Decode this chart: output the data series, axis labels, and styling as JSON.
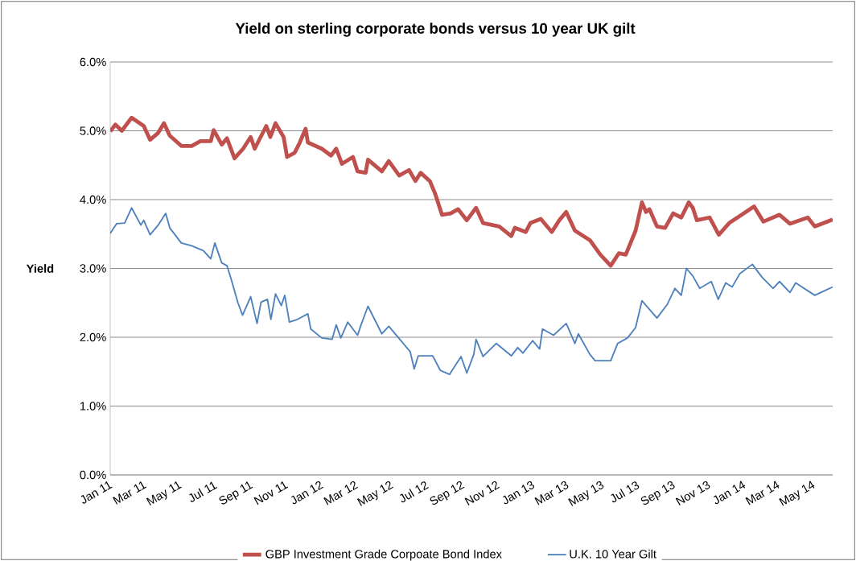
{
  "chart_data": {
    "type": "line",
    "title": "Yield on sterling corporate bonds versus 10 year UK gilt",
    "ylabel": "Yield",
    "ylim": [
      0,
      6
    ],
    "yticks": [
      {
        "value": 0,
        "label": "0.0%"
      },
      {
        "value": 1,
        "label": "1.0%"
      },
      {
        "value": 2,
        "label": "2.0%"
      },
      {
        "value": 3,
        "label": "3.0%"
      },
      {
        "value": 4,
        "label": "4.0%"
      },
      {
        "value": 5,
        "label": "5.0%"
      },
      {
        "value": 6,
        "label": "6.0%"
      }
    ],
    "xlim": [
      "2011-01-01",
      "2014-06-04"
    ],
    "xticks": [
      {
        "value": "2011-01-01",
        "label": "Jan 11"
      },
      {
        "value": "2011-03-01",
        "label": "Mar 11"
      },
      {
        "value": "2011-05-01",
        "label": "May 11"
      },
      {
        "value": "2011-07-01",
        "label": "Jul 11"
      },
      {
        "value": "2011-09-01",
        "label": "Sep 11"
      },
      {
        "value": "2011-11-01",
        "label": "Nov 11"
      },
      {
        "value": "2012-01-01",
        "label": "Jan 12"
      },
      {
        "value": "2012-03-01",
        "label": "Mar 12"
      },
      {
        "value": "2012-05-01",
        "label": "May 12"
      },
      {
        "value": "2012-07-01",
        "label": "Jul 12"
      },
      {
        "value": "2012-09-01",
        "label": "Sep 12"
      },
      {
        "value": "2012-11-01",
        "label": "Nov 12"
      },
      {
        "value": "2013-01-01",
        "label": "Jan 13"
      },
      {
        "value": "2013-03-01",
        "label": "Mar 13"
      },
      {
        "value": "2013-05-01",
        "label": "May 13"
      },
      {
        "value": "2013-07-01",
        "label": "Jul 13"
      },
      {
        "value": "2013-09-01",
        "label": "Sep 13"
      },
      {
        "value": "2013-11-01",
        "label": "Nov 13"
      },
      {
        "value": "2014-01-01",
        "label": "Jan 14"
      },
      {
        "value": "2014-03-01",
        "label": "Mar 14"
      },
      {
        "value": "2014-05-01",
        "label": "May 14"
      }
    ],
    "grid": "y",
    "legend": "bottom",
    "marker": "none",
    "line_style": "solid",
    "series": [
      {
        "name": "GBP Investment Grade Corpoate Bond Index",
        "color": "#c0504d",
        "x": [
          "2011-01-01",
          "2011-01-10",
          "2011-01-21",
          "2011-02-07",
          "2011-02-28",
          "2011-03-11",
          "2011-03-25",
          "2011-04-04",
          "2011-04-14",
          "2011-05-04",
          "2011-05-22",
          "2011-06-06",
          "2011-06-24",
          "2011-06-29",
          "2011-07-13",
          "2011-07-22",
          "2011-08-04",
          "2011-08-19",
          "2011-09-01",
          "2011-09-08",
          "2011-09-28",
          "2011-10-05",
          "2011-10-14",
          "2011-10-28",
          "2011-11-03",
          "2011-11-16",
          "2011-11-25",
          "2011-12-05",
          "2011-12-09",
          "2012-01-02",
          "2012-01-18",
          "2012-01-27",
          "2012-02-06",
          "2012-02-25",
          "2012-03-04",
          "2012-03-18",
          "2012-03-22",
          "2012-04-15",
          "2012-04-27",
          "2012-05-15",
          "2012-06-01",
          "2012-06-12",
          "2012-06-21",
          "2012-07-07",
          "2012-07-16",
          "2012-07-28",
          "2012-08-12",
          "2012-08-25",
          "2012-09-09",
          "2012-09-25",
          "2012-10-07",
          "2012-11-04",
          "2012-11-25",
          "2012-12-01",
          "2012-12-20",
          "2012-12-28",
          "2013-01-15",
          "2013-02-03",
          "2013-02-16",
          "2013-02-28",
          "2013-03-15",
          "2013-04-10",
          "2013-04-28",
          "2013-05-16",
          "2013-05-30",
          "2013-06-11",
          "2013-06-28",
          "2013-07-09",
          "2013-07-16",
          "2013-07-22",
          "2013-08-04",
          "2013-08-18",
          "2013-09-01",
          "2013-09-15",
          "2013-09-28",
          "2013-10-05",
          "2013-10-12",
          "2013-11-03",
          "2013-11-19",
          "2013-12-07",
          "2013-12-25",
          "2014-01-19",
          "2014-02-04",
          "2014-03-04",
          "2014-03-22",
          "2014-04-22",
          "2014-05-04",
          "2014-06-04"
        ],
        "values": [
          4.99,
          5.09,
          5.0,
          5.19,
          5.07,
          4.87,
          4.97,
          5.11,
          4.93,
          4.78,
          4.78,
          4.85,
          4.85,
          5.01,
          4.8,
          4.89,
          4.6,
          4.74,
          4.91,
          4.74,
          5.07,
          4.91,
          5.11,
          4.91,
          4.62,
          4.68,
          4.83,
          5.03,
          4.83,
          4.74,
          4.64,
          4.74,
          4.52,
          4.62,
          4.41,
          4.39,
          4.58,
          4.41,
          4.56,
          4.35,
          4.43,
          4.27,
          4.39,
          4.27,
          4.09,
          3.78,
          3.8,
          3.86,
          3.7,
          3.88,
          3.66,
          3.61,
          3.47,
          3.59,
          3.53,
          3.66,
          3.72,
          3.53,
          3.7,
          3.82,
          3.55,
          3.41,
          3.2,
          3.04,
          3.22,
          3.2,
          3.55,
          3.96,
          3.82,
          3.86,
          3.61,
          3.59,
          3.8,
          3.74,
          3.96,
          3.88,
          3.7,
          3.74,
          3.49,
          3.66,
          3.76,
          3.9,
          3.68,
          3.78,
          3.65,
          3.74,
          3.61,
          3.71
        ]
      },
      {
        "name": "U.K. 10 Year Gilt",
        "color": "#4f81bd",
        "x": [
          "2011-01-01",
          "2011-01-12",
          "2011-01-26",
          "2011-02-07",
          "2011-02-23",
          "2011-02-28",
          "2011-03-11",
          "2011-03-25",
          "2011-04-07",
          "2011-04-14",
          "2011-05-04",
          "2011-05-22",
          "2011-06-11",
          "2011-06-24",
          "2011-07-01",
          "2011-07-13",
          "2011-07-22",
          "2011-07-29",
          "2011-08-10",
          "2011-08-18",
          "2011-09-01",
          "2011-09-12",
          "2011-09-19",
          "2011-09-30",
          "2011-10-06",
          "2011-10-14",
          "2011-10-24",
          "2011-10-30",
          "2011-11-07",
          "2011-11-21",
          "2011-12-09",
          "2011-12-14",
          "2012-01-02",
          "2012-01-20",
          "2012-01-27",
          "2012-02-04",
          "2012-02-16",
          "2012-03-04",
          "2012-03-10",
          "2012-03-22",
          "2012-04-15",
          "2012-04-27",
          "2012-05-12",
          "2012-06-03",
          "2012-06-10",
          "2012-06-17",
          "2012-07-12",
          "2012-07-25",
          "2012-08-10",
          "2012-08-30",
          "2012-09-09",
          "2012-09-21",
          "2012-09-25",
          "2012-10-07",
          "2012-10-30",
          "2012-11-25",
          "2012-12-06",
          "2012-12-15",
          "2013-01-01",
          "2013-01-13",
          "2013-01-18",
          "2013-02-06",
          "2013-02-28",
          "2013-03-15",
          "2013-03-21",
          "2013-04-10",
          "2013-04-19",
          "2013-05-16",
          "2013-05-28",
          "2013-06-14",
          "2013-06-28",
          "2013-07-09",
          "2013-08-04",
          "2013-08-22",
          "2013-09-04",
          "2013-09-15",
          "2013-09-24",
          "2013-10-05",
          "2013-10-17",
          "2013-11-06",
          "2013-11-18",
          "2013-12-01",
          "2013-12-12",
          "2013-12-25",
          "2014-01-16",
          "2014-02-02",
          "2014-02-21",
          "2014-03-04",
          "2014-03-22",
          "2014-04-01",
          "2014-05-04",
          "2014-06-04"
        ],
        "values": [
          3.51,
          3.65,
          3.66,
          3.88,
          3.63,
          3.7,
          3.49,
          3.63,
          3.8,
          3.59,
          3.37,
          3.33,
          3.26,
          3.14,
          3.37,
          3.08,
          3.04,
          2.85,
          2.5,
          2.32,
          2.59,
          2.2,
          2.51,
          2.55,
          2.26,
          2.63,
          2.46,
          2.61,
          2.22,
          2.26,
          2.34,
          2.12,
          1.99,
          1.97,
          2.18,
          1.99,
          2.22,
          2.03,
          2.18,
          2.45,
          2.05,
          2.16,
          2.01,
          1.79,
          1.54,
          1.73,
          1.73,
          1.52,
          1.46,
          1.72,
          1.48,
          1.75,
          1.97,
          1.72,
          1.91,
          1.73,
          1.85,
          1.77,
          1.95,
          1.83,
          2.12,
          2.03,
          2.2,
          1.91,
          2.05,
          1.75,
          1.66,
          1.66,
          1.91,
          1.99,
          2.14,
          2.53,
          2.28,
          2.48,
          2.71,
          2.61,
          3.0,
          2.89,
          2.71,
          2.81,
          2.55,
          2.79,
          2.73,
          2.92,
          3.06,
          2.87,
          2.71,
          2.81,
          2.65,
          2.79,
          2.61,
          2.73
        ]
      }
    ]
  }
}
